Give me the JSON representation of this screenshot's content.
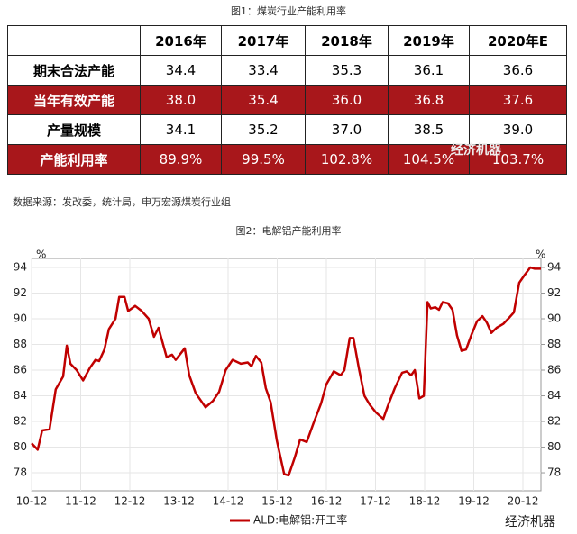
{
  "figure1": {
    "title": "图1：煤炭行业产能利用率",
    "table": {
      "columns": [
        "2016年",
        "2017年",
        "2018年",
        "2019年",
        "2020年E"
      ],
      "rows": [
        {
          "label": "期末合法产能",
          "cells": [
            "34.4",
            "33.4",
            "35.3",
            "36.1",
            "36.6"
          ]
        },
        {
          "label": "当年有效产能",
          "cells": [
            "38.0",
            "35.4",
            "36.0",
            "36.8",
            "37.6"
          ]
        },
        {
          "label": "产量规模",
          "cells": [
            "34.1",
            "35.2",
            "37.0",
            "38.5",
            "39.0"
          ]
        },
        {
          "label": "产能利用率",
          "cells": [
            "89.9%",
            "99.5%",
            "102.8%",
            "104.5%",
            "103.7%"
          ]
        }
      ]
    },
    "source": "数据来源：发改委，统计局，申万宏源煤炭行业组"
  },
  "watermarks": [
    "经济机器",
    "经济机器"
  ],
  "chart_data": {
    "type": "line",
    "title": "图2：电解铝产能利用率",
    "y_unit": "%",
    "x": [
      0,
      1.5,
      2.6,
      4.4,
      5.9,
      7.7,
      8.6,
      9.5,
      11.0,
      12.6,
      14.3,
      15.6,
      16.5,
      17.8,
      18.9,
      20.5,
      21.4,
      22.7,
      23.6,
      25.3,
      26.9,
      28.6,
      29.9,
      31.0,
      33.0,
      34.3,
      35.2,
      37.4,
      38.5,
      40.1,
      42.5,
      44.3,
      45.8,
      47.4,
      49.1,
      51.1,
      52.8,
      53.7,
      54.8,
      56.1,
      57.2,
      58.4,
      59.9,
      61.7,
      62.8,
      64.3,
      65.6,
      67.2,
      68.9,
      70.7,
      72.0,
      73.8,
      75.5,
      76.4,
      77.7,
      78.6,
      79.9,
      81.3,
      82.6,
      84.1,
      85.9,
      87.0,
      88.7,
      90.5,
      91.6,
      92.7,
      93.6,
      94.7,
      95.8,
      96.7,
      97.5,
      98.6,
      99.5,
      100.4,
      101.7,
      102.8,
      103.9,
      105.0,
      106.1,
      107.5,
      108.8,
      110.1,
      111.2,
      112.3,
      113.6,
      115.2,
      116.7,
      117.8,
      119.1,
      120.4,
      121.8,
      122.9,
      124.4
    ],
    "series": [
      {
        "name": "ALD:电解铝:开工率",
        "color": "#c00000",
        "values": [
          80.3,
          79.8,
          81.3,
          81.4,
          84.5,
          85.5,
          87.9,
          86.5,
          86.0,
          85.2,
          86.2,
          86.8,
          86.7,
          87.6,
          89.2,
          90.0,
          91.7,
          91.7,
          90.6,
          91.0,
          90.6,
          90.0,
          88.6,
          89.3,
          87.0,
          87.2,
          86.8,
          87.7,
          85.6,
          84.2,
          83.1,
          83.6,
          84.3,
          86.0,
          86.8,
          86.5,
          86.6,
          86.3,
          87.1,
          86.6,
          84.6,
          83.5,
          80.5,
          77.9,
          77.8,
          79.2,
          80.6,
          80.4,
          81.9,
          83.4,
          84.9,
          85.9,
          85.6,
          86.0,
          88.5,
          88.5,
          86.2,
          84.0,
          83.3,
          82.7,
          82.2,
          83.2,
          84.6,
          85.8,
          85.9,
          85.6,
          86.0,
          83.8,
          84.0,
          91.3,
          90.8,
          90.9,
          90.7,
          91.3,
          91.2,
          90.7,
          88.7,
          87.5,
          87.6,
          88.8,
          89.8,
          90.2,
          89.7,
          88.9,
          89.3,
          89.6,
          90.1,
          90.5,
          92.8,
          93.4,
          94.0,
          93.9,
          93.9
        ]
      }
    ],
    "xlim": [
      0,
      124.4
    ],
    "xticks": [
      {
        "value": 0,
        "label": "10-12"
      },
      {
        "value": 12,
        "label": "11-12"
      },
      {
        "value": 24,
        "label": "12-12"
      },
      {
        "value": 36,
        "label": "13-12"
      },
      {
        "value": 48,
        "label": "14-12"
      },
      {
        "value": 60,
        "label": "15-12"
      },
      {
        "value": 72,
        "label": "16-12"
      },
      {
        "value": 84,
        "label": "17-12"
      },
      {
        "value": 96,
        "label": "18-12"
      },
      {
        "value": 108,
        "label": "19-12"
      },
      {
        "value": 120,
        "label": "20-12"
      }
    ],
    "ylim": [
      76.6,
      94.7
    ],
    "yticks": [
      78,
      80,
      82,
      84,
      86,
      88,
      90,
      92,
      94
    ],
    "y2lim": [
      76.6,
      94.7
    ],
    "y2ticks": [
      78,
      80,
      82,
      84,
      86,
      88,
      90,
      92,
      94
    ],
    "grid": true
  }
}
